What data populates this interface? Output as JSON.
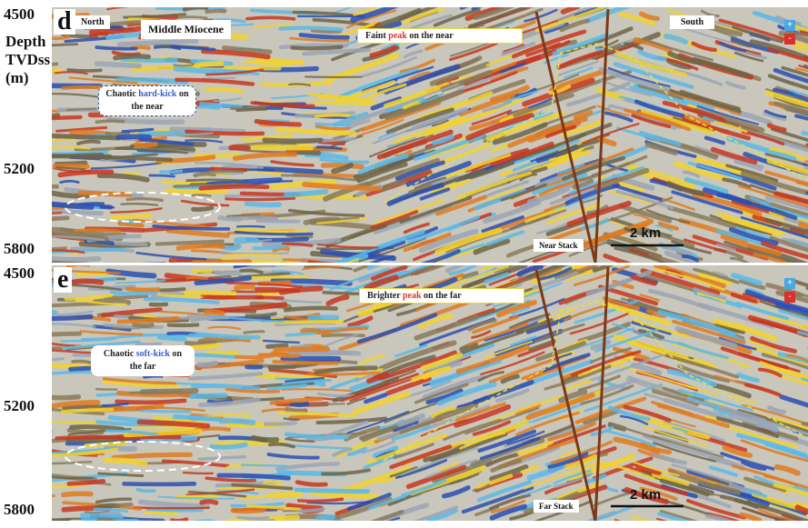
{
  "y_axis_title": [
    "Depth",
    "TVDss",
    "(m)"
  ],
  "panels": [
    {
      "letter": "d",
      "ticks": [
        "4500",
        "5200",
        "5800"
      ],
      "north": "North",
      "age": "Middle Miocene",
      "south": "South",
      "stack": "Near Stack",
      "scale": "2 km",
      "legend": [
        "+",
        "-"
      ],
      "callout": {
        "before": "Faint ",
        "highlight": "peak",
        "after": " on the near"
      },
      "chaos": {
        "before": "Chaotic ",
        "highlight": "hard-kick",
        "after": " on the near"
      }
    },
    {
      "letter": "e",
      "ticks": [
        "4500",
        "5200",
        "5800"
      ],
      "stack": "Far Stack",
      "scale": "2 km",
      "legend": [
        "+",
        "-"
      ],
      "callout": {
        "before": "Brighter ",
        "highlight": "peak",
        "after": " on the far"
      },
      "chaos": {
        "before": "Chaotic ",
        "highlight": "soft-kick",
        "after": " on the far"
      }
    }
  ]
}
